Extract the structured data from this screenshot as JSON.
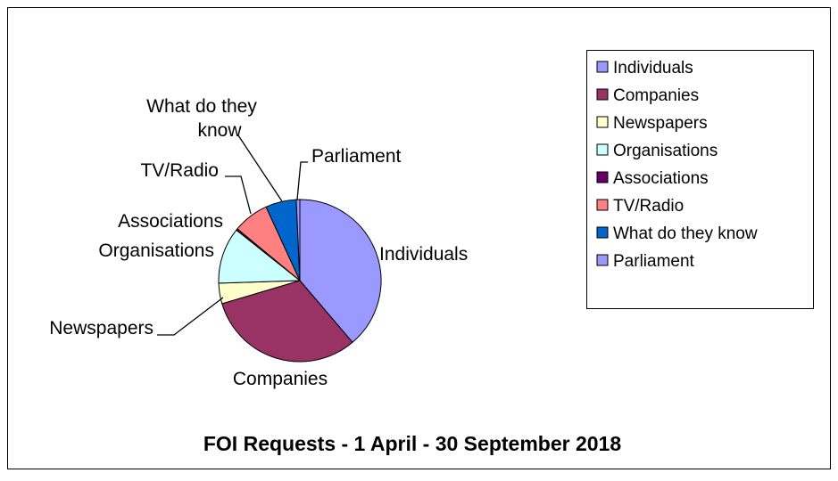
{
  "chart_data": {
    "type": "pie",
    "title": "FOI Requests - 1 April - 30 September 2018",
    "categories": [
      "Individuals",
      "Companies",
      "Newspapers",
      "Organisations",
      "Associations",
      "TV/Radio",
      "What do they know",
      "Parliament"
    ],
    "values": [
      38,
      31,
      4,
      11,
      0.3,
      7,
      6,
      0.7
    ],
    "slice_labels": [
      "Individuals",
      "Companies",
      "Newspapers",
      "Organisations",
      "Associations",
      "TV/Radio",
      "What do they\nknow",
      "Parliament"
    ],
    "colors": [
      "#9999ff",
      "#993366",
      "#ffffcc",
      "#ccffff",
      "#660066",
      "#ff8080",
      "#0066cc",
      "#9999ff"
    ],
    "legend": {
      "position": "right",
      "entries": [
        "Individuals",
        "Companies",
        "Newspapers",
        "Organisations",
        "Associations",
        "TV/Radio",
        "What do they know",
        "Parliament"
      ]
    }
  }
}
